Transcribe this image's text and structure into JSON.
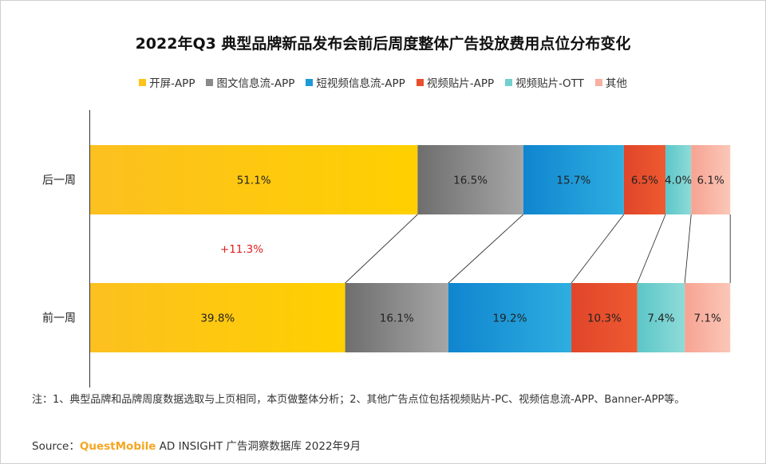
{
  "title": "2022年Q3 典型品牌新品发布会前后周度整体广告投放费用点位分布变化",
  "colors": {
    "开屏-APP": "#fcc31a",
    "图文信息流-APP": "#8a8a8a",
    "短视频信息流-APP": "#1f9ad6",
    "视频贴片-APP": "#e84f2e",
    "视频贴片-OTT": "#72d0d0",
    "其他": "#f8b0a0"
  },
  "chart_data": {
    "type": "bar",
    "orientation": "horizontal",
    "stacked": true,
    "categories": [
      "后一周",
      "前一周"
    ],
    "series": [
      {
        "name": "开屏-APP",
        "values": [
          51.1,
          39.8
        ]
      },
      {
        "name": "图文信息流-APP",
        "values": [
          16.5,
          16.1
        ]
      },
      {
        "name": "短视频信息流-APP",
        "values": [
          15.7,
          19.2
        ]
      },
      {
        "name": "视频贴片-APP",
        "values": [
          6.5,
          10.3
        ]
      },
      {
        "name": "视频贴片-OTT",
        "values": [
          4.0,
          7.4
        ]
      },
      {
        "name": "其他",
        "values": [
          6.1,
          7.1
        ]
      }
    ],
    "value_labels": [
      [
        "51.1%",
        "16.5%",
        "15.7%",
        "6.5%",
        "4.0%",
        "6.1%"
      ],
      [
        "39.8%",
        "16.1%",
        "19.2%",
        "10.3%",
        "7.4%",
        "7.1%"
      ]
    ],
    "annotation": "+11.3%",
    "annotation_color": "#e02020",
    "xlim": [
      0,
      100
    ],
    "legend_position": "top",
    "grid": false
  },
  "note": "注：1、典型品牌和品牌周度数据选取与上页相同，本页做整体分析；2、其他广告点位包括视频贴片-PC、视频信息流-APP、Banner-APP等。",
  "source": {
    "label": "Source：",
    "brand": "QuestMobile",
    "text": " AD INSIGHT 广告洞察数据库 2022年9月"
  }
}
